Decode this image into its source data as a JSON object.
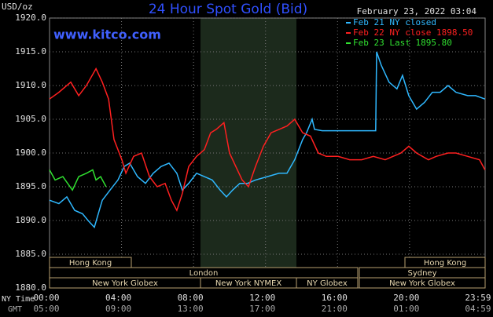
{
  "chart_data": {
    "type": "line",
    "title": "24 Hour Spot Gold (Bid)",
    "source": "www.kitco.com",
    "y_unit": "USD/oz",
    "timestamp": "February 23, 2022 03:04",
    "ylim": [
      1880,
      1920
    ],
    "yticks": [
      {
        "value": 1880,
        "label": "1880.0"
      },
      {
        "value": 1885,
        "label": "1885.0"
      },
      {
        "value": 1890,
        "label": "1890.0"
      },
      {
        "value": 1895,
        "label": "1895.0"
      },
      {
        "value": 1900,
        "label": "1900.0"
      },
      {
        "value": 1905,
        "label": "1905.0"
      },
      {
        "value": 1910,
        "label": "1910.0"
      },
      {
        "value": 1915,
        "label": "1915.0"
      },
      {
        "value": 1920,
        "label": "1920.0"
      }
    ],
    "xlim": [
      0,
      24.2
    ],
    "xticks": [
      {
        "value": 0,
        "label": "00:00"
      },
      {
        "value": 4,
        "label": "04:00"
      },
      {
        "value": 8,
        "label": "08:00"
      },
      {
        "value": 12,
        "label": "12:00"
      },
      {
        "value": 16,
        "label": "16:00"
      },
      {
        "value": 20,
        "label": "20:00"
      },
      {
        "value": 23.98,
        "label": "23:59"
      }
    ],
    "x_row_label": "NY Time",
    "x2_row_label": "GMT",
    "x2_tick_labels": [
      "05:00",
      "09:00",
      "13:00",
      "17:00",
      "21:00",
      "01:00",
      "04:59"
    ],
    "grid": true,
    "sessions": [
      "Hong Kong",
      "London",
      "New York Globex",
      "New York NYMEX",
      "NY Globex",
      "Sydney",
      "Hong Kong",
      "New York Globex"
    ],
    "series": [
      {
        "name": "Feb 21 NY closed",
        "color": "#2fb8ff",
        "x": [
          0,
          0.52,
          0.96,
          1.4,
          1.83,
          2.14,
          2.49,
          2.71,
          2.93,
          3.36,
          3.8,
          4.15,
          4.45,
          4.89,
          5.33,
          5.76,
          6.2,
          6.64,
          7.07,
          7.38,
          7.73,
          8.17,
          8.6,
          9.04,
          9.48,
          9.83,
          10.17,
          10.57,
          11.0,
          11.44,
          12.1,
          12.75,
          13.19,
          13.62,
          14.06,
          14.28,
          14.59,
          14.72,
          15.15,
          18.12,
          18.17,
          18.43,
          18.86,
          19.3,
          19.61,
          19.96,
          20.39,
          20.83,
          21.27,
          21.7,
          22.14,
          22.58,
          23.23,
          23.67,
          24.19
        ],
        "values": [
          1893,
          1892.5,
          1893.5,
          1891.5,
          1891,
          1890,
          1889,
          1891,
          1893,
          1894.5,
          1896,
          1898,
          1898.5,
          1896.5,
          1895.5,
          1897,
          1898,
          1898.5,
          1897,
          1894.5,
          1895.5,
          1897,
          1896.5,
          1896,
          1894.5,
          1893.5,
          1894.5,
          1895.5,
          1895.5,
          1896,
          1896.5,
          1897,
          1897,
          1899,
          1902,
          1903,
          1905,
          1903.5,
          1903.3,
          1903.3,
          1915,
          1913,
          1910.5,
          1909.5,
          1911.5,
          1908.5,
          1906.5,
          1907.5,
          1909,
          1909,
          1910,
          1909,
          1908.5,
          1908.5,
          1908
        ]
      },
      {
        "name": "Feb 22 NY close 1898.50",
        "color": "#ff2020",
        "x": [
          0,
          0.52,
          1.18,
          1.62,
          2.05,
          2.58,
          2.93,
          3.28,
          3.58,
          4.02,
          4.24,
          4.67,
          5.11,
          5.55,
          5.98,
          6.42,
          6.77,
          7.07,
          7.38,
          7.73,
          8.17,
          8.6,
          8.95,
          9.26,
          9.69,
          10.0,
          10.35,
          10.7,
          11.05,
          11.44,
          11.88,
          12.31,
          12.75,
          13.19,
          13.62,
          14.06,
          14.5,
          14.93,
          15.37,
          16.03,
          16.68,
          17.34,
          17.99,
          18.65,
          19.08,
          19.52,
          19.96,
          20.39,
          21.05,
          21.48,
          22.14,
          22.58,
          23.23,
          23.89,
          24.19
        ],
        "values": [
          1908,
          1909,
          1910.5,
          1908.5,
          1910,
          1912.5,
          1910.5,
          1908,
          1902,
          1899,
          1897,
          1899.5,
          1900,
          1896.5,
          1895,
          1895.5,
          1893,
          1891.5,
          1894,
          1898,
          1899.5,
          1900.5,
          1903,
          1903.5,
          1904.5,
          1900,
          1898,
          1896,
          1895,
          1898,
          1901,
          1903,
          1903.5,
          1904,
          1905,
          1903,
          1902.5,
          1900,
          1899.5,
          1899.5,
          1899,
          1899,
          1899.5,
          1899,
          1899.5,
          1900,
          1901,
          1900,
          1899,
          1899.5,
          1900,
          1900,
          1899.5,
          1899,
          1897.5
        ]
      },
      {
        "name": "Feb 23 Last 1895.80",
        "color": "#30e030",
        "x": [
          0,
          0.31,
          0.74,
          1.27,
          1.62,
          2.05,
          2.4,
          2.58,
          2.84,
          3.14
        ],
        "values": [
          1897.5,
          1896,
          1896.5,
          1894.5,
          1896.5,
          1897,
          1897.5,
          1896,
          1896.5,
          1895
        ]
      }
    ]
  }
}
